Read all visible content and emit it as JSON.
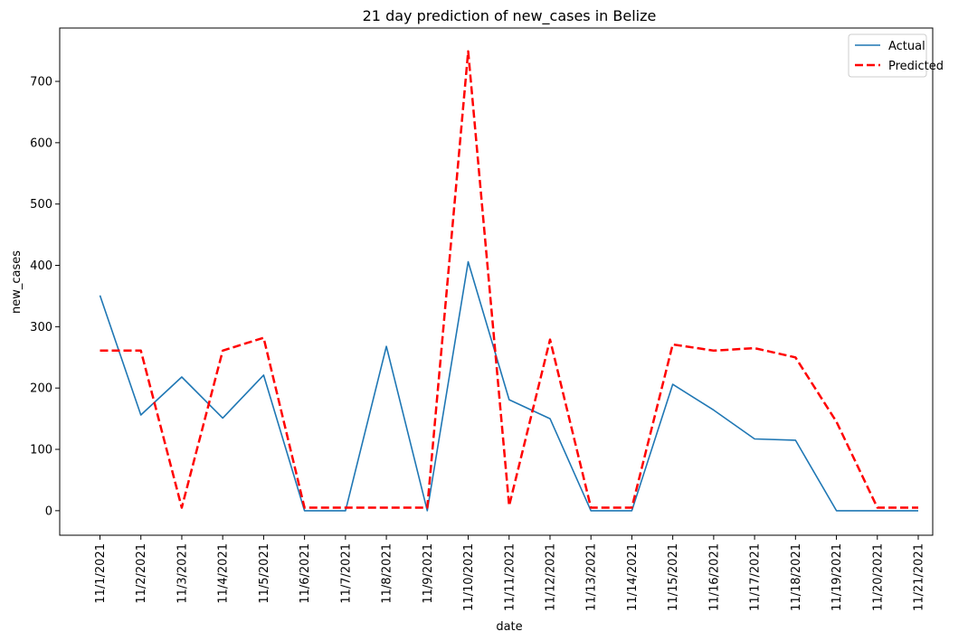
{
  "chart_data": {
    "type": "line",
    "title": "21 day prediction of new_cases in Belize",
    "xlabel": "date",
    "ylabel": "new_cases",
    "categories": [
      "11/1/2021",
      "11/2/2021",
      "11/3/2021",
      "11/4/2021",
      "11/5/2021",
      "11/6/2021",
      "11/7/2021",
      "11/8/2021",
      "11/9/2021",
      "11/10/2021",
      "11/11/2021",
      "11/12/2021",
      "11/13/2021",
      "11/14/2021",
      "11/15/2021",
      "11/16/2021",
      "11/17/2021",
      "11/18/2021",
      "11/19/2021",
      "11/20/2021",
      "11/21/2021"
    ],
    "yticks": [
      0,
      100,
      200,
      300,
      400,
      500,
      600,
      700
    ],
    "ylim": [
      -40,
      787
    ],
    "grid": false,
    "legend_position": "top-right",
    "series": [
      {
        "name": "Actual",
        "color": "#1f77b4",
        "style": "solid",
        "values": [
          351,
          156,
          218,
          151,
          221,
          0,
          0,
          268,
          0,
          406,
          181,
          150,
          0,
          0,
          206,
          164,
          117,
          115,
          0,
          0,
          0
        ]
      },
      {
        "name": "Predicted",
        "color": "#ff0000",
        "style": "dashed",
        "values": [
          261,
          261,
          5,
          261,
          282,
          5,
          5,
          5,
          5,
          749,
          8,
          279,
          5,
          5,
          271,
          261,
          265,
          250,
          145,
          5,
          5
        ]
      }
    ]
  }
}
